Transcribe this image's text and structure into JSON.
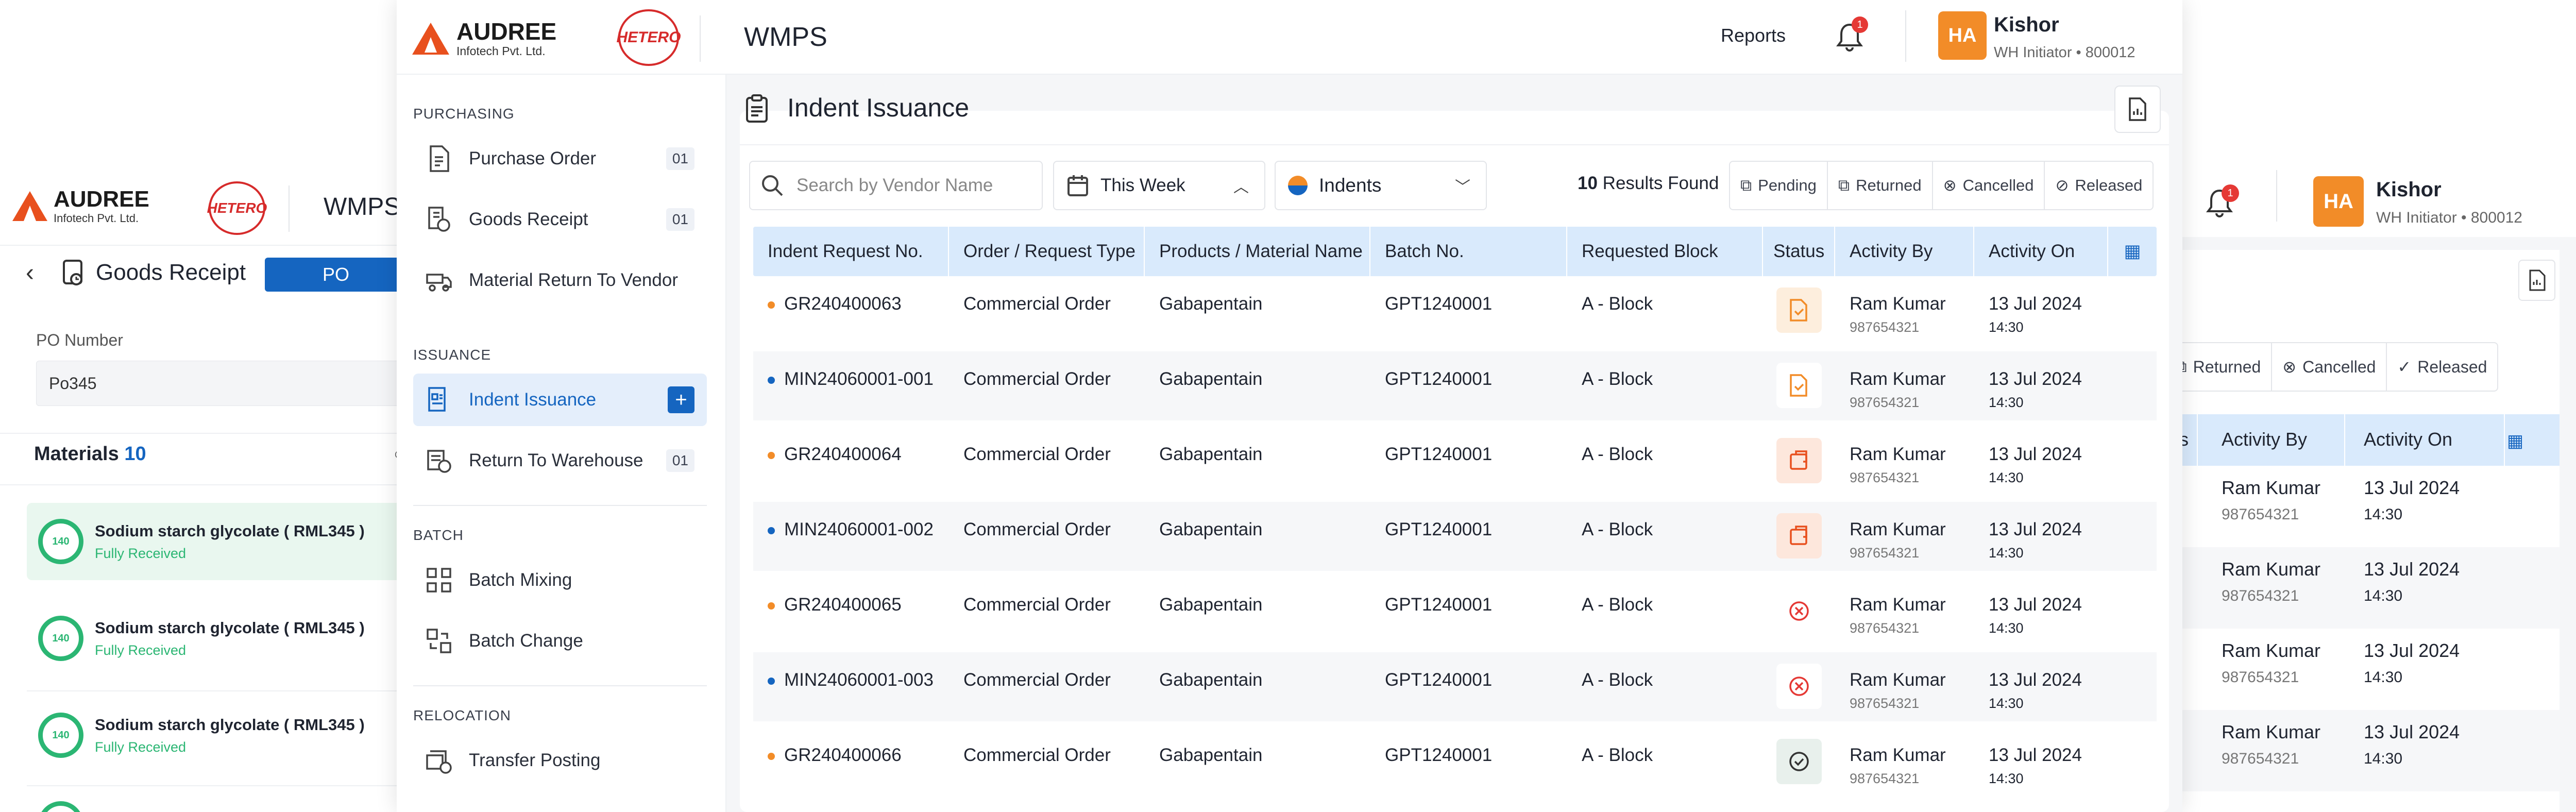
{
  "brand": {
    "name": "AUDREE",
    "sub": "Infotech Pvt. Ltd.",
    "partner": "HETERO",
    "app": "WMPS"
  },
  "left_screen": {
    "page_title": "Goods Receipt",
    "tab_po": "PO",
    "po_label": "PO Number",
    "po_value": "Po345",
    "materials_label": "Materials",
    "materials_count": "10",
    "materials": [
      {
        "name": "Sodium starch glycolate ( RML345 )",
        "status": "Fully Received",
        "ring": "140"
      },
      {
        "name": "Sodium starch glycolate ( RML345 )",
        "status": "Fully Received",
        "ring": "140"
      },
      {
        "name": "Sodium starch glycolate ( RML345 )",
        "status": "Fully Received",
        "ring": "140"
      }
    ]
  },
  "header": {
    "reports": "Reports",
    "notif_count": "1",
    "avatar": "HA",
    "user_name": "Kishor",
    "user_role": "WH Initiator • 800012"
  },
  "sidebar": {
    "sections": [
      {
        "title": "PURCHASING",
        "items": [
          {
            "label": "Purchase Order",
            "badge": "01"
          },
          {
            "label": "Goods Receipt",
            "badge": "01"
          },
          {
            "label": "Material Return To Vendor",
            "badge": ""
          }
        ]
      },
      {
        "title": "ISSUANCE",
        "items": [
          {
            "label": "Indent Issuance",
            "badge": "+"
          },
          {
            "label": "Return To Warehouse",
            "badge": "01"
          }
        ]
      },
      {
        "title": "BATCH",
        "items": [
          {
            "label": "Batch Mixing",
            "badge": ""
          },
          {
            "label": "Batch Change",
            "badge": ""
          }
        ]
      },
      {
        "title": "RELOCATION",
        "items": [
          {
            "label": "Transfer Posting",
            "badge": ""
          }
        ]
      }
    ]
  },
  "main": {
    "title": "Indent Issuance",
    "search_placeholder": "Search by Vendor Name",
    "period": "This Week",
    "type": "Indents",
    "results_count": "10",
    "results_label": "Results Found",
    "chips": [
      "Pending",
      "Returned",
      "Cancelled",
      "Released"
    ],
    "columns": [
      "Indent Request No.",
      "Order / Request Type",
      "Products / Material Name",
      "Batch No.",
      "Requested Block",
      "Status",
      "Activity By",
      "Activity On"
    ],
    "rows": [
      {
        "id": "GR240400063",
        "type": "Commercial Order",
        "product": "Gabapentain",
        "batch": "GPT1240001",
        "block": "A - Block",
        "status": "pending",
        "by": "Ram Kumar",
        "phone": "987654321",
        "date": "13 Jul 2024",
        "time": "14:30",
        "dot": "orange"
      },
      {
        "id": "MIN24060001-001",
        "type": "Commercial Order",
        "product": "Gabapentain",
        "batch": "GPT1240001",
        "block": "A - Block",
        "status": "pending-light",
        "by": "Ram Kumar",
        "phone": "987654321",
        "date": "13 Jul 2024",
        "time": "14:30",
        "dot": "blue"
      },
      {
        "id": "GR240400064",
        "type": "Commercial Order",
        "product": "Gabapentain",
        "batch": "GPT1240001",
        "block": "A - Block",
        "status": "returned",
        "by": "Ram Kumar",
        "phone": "987654321",
        "date": "13 Jul 2024",
        "time": "14:30",
        "dot": "orange"
      },
      {
        "id": "MIN24060001-002",
        "type": "Commercial Order",
        "product": "Gabapentain",
        "batch": "GPT1240001",
        "block": "A - Block",
        "status": "returned",
        "by": "Ram Kumar",
        "phone": "987654321",
        "date": "13 Jul 2024",
        "time": "14:30",
        "dot": "blue"
      },
      {
        "id": "GR240400065",
        "type": "Commercial Order",
        "product": "Gabapentain",
        "batch": "GPT1240001",
        "block": "A - Block",
        "status": "cancelled",
        "by": "Ram Kumar",
        "phone": "987654321",
        "date": "13 Jul 2024",
        "time": "14:30",
        "dot": "orange"
      },
      {
        "id": "MIN24060001-003",
        "type": "Commercial Order",
        "product": "Gabapentain",
        "batch": "GPT1240001",
        "block": "A - Block",
        "status": "cancelled",
        "by": "Ram Kumar",
        "phone": "987654321",
        "date": "13 Jul 2024",
        "time": "14:30",
        "dot": "blue"
      },
      {
        "id": "GR240400066",
        "type": "Commercial Order",
        "product": "Gabapentain",
        "batch": "GPT1240001",
        "block": "A - Block",
        "status": "released",
        "by": "Ram Kumar",
        "phone": "987654321",
        "date": "13 Jul 2024",
        "time": "14:30",
        "dot": "orange"
      }
    ]
  },
  "right_screen": {
    "chip_partial": "g",
    "chips": [
      "Returned",
      "Cancelled",
      "Released"
    ],
    "col_partial": "us",
    "columns": [
      "Activity By",
      "Activity On"
    ],
    "rows": [
      {
        "by": "Ram Kumar",
        "phone": "987654321",
        "date": "13 Jul 2024",
        "time": "14:30"
      },
      {
        "by": "Ram Kumar",
        "phone": "987654321",
        "date": "13 Jul 2024",
        "time": "14:30"
      },
      {
        "by": "Ram Kumar",
        "phone": "987654321",
        "date": "13 Jul 2024",
        "time": "14:30"
      },
      {
        "by": "Ram Kumar",
        "phone": "987654321",
        "date": "13 Jul 2024",
        "time": "14:30"
      }
    ]
  },
  "colors": {
    "primary": "#1565c0",
    "orange": "#f28c28",
    "green": "#2bb673",
    "red": "#e53935",
    "header_bg": "#d9eafc"
  }
}
